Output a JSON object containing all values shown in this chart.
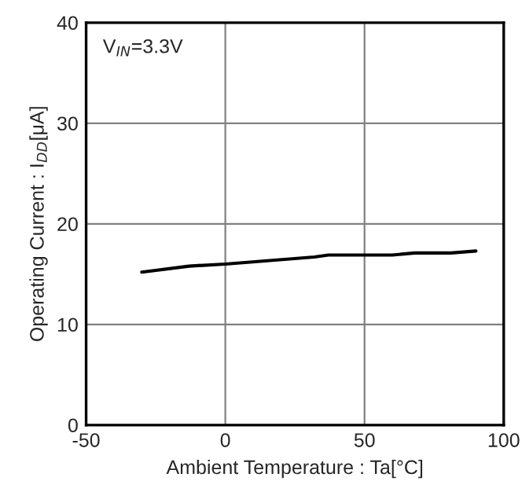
{
  "chart_data": {
    "type": "line",
    "xlabel": "Ambient Temperature : Ta[°C]",
    "ylabel": "Operating Current : I$_{DD}$[μA]",
    "annotations": [
      "V$_{IN}$=3.3V"
    ],
    "series": [
      {
        "color": "#000000",
        "x": [
          -30,
          -13,
          0,
          32,
          37,
          60,
          68,
          81,
          90
        ],
        "values": [
          15.2,
          15.8,
          16.0,
          16.7,
          16.9,
          16.9,
          17.1,
          17.1,
          17.3
        ]
      }
    ],
    "xlim": [
      -50,
      100
    ],
    "xticks": [
      -50,
      0,
      50,
      100
    ],
    "ylim": [
      0,
      40
    ],
    "yticks": [
      0,
      10,
      20,
      30,
      40
    ],
    "grid": true,
    "marker": "none",
    "line_style": "solid"
  }
}
